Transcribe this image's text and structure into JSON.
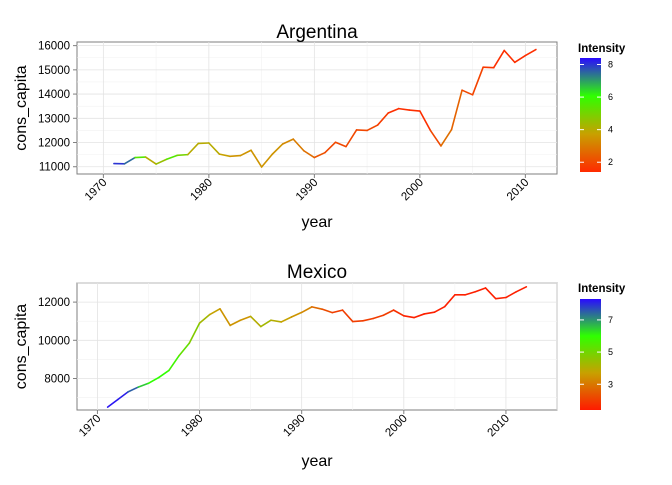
{
  "chart_data": [
    {
      "type": "line",
      "title": "Argentina",
      "xlabel": "year",
      "ylabel": "cons_capita",
      "xlim": [
        1967.5,
        2013
      ],
      "ylim": [
        10700,
        16150
      ],
      "x_ticks": [
        1970,
        1980,
        1990,
        2000,
        2010
      ],
      "y_ticks": [
        11000,
        12000,
        13000,
        14000,
        15000,
        16000
      ],
      "grid": true,
      "legend": {
        "title": "Intensity",
        "placement": "right",
        "range": [
          1.4,
          8.4
        ],
        "ticks": [
          2,
          4,
          6,
          8
        ],
        "colors": [
          "#ff2a00",
          "#c8a000",
          "#2fff00",
          "#2a0aff"
        ]
      },
      "series": [
        {
          "x": [
            1971,
            1972,
            1973,
            1974,
            1975,
            1976,
            1977,
            1978,
            1979,
            1980,
            1981,
            1982,
            1983,
            1984,
            1985,
            1986,
            1987,
            1988,
            1989,
            1990,
            1991,
            1992,
            1993,
            1994,
            1995,
            1996,
            1997,
            1998,
            1999,
            2000,
            2001,
            2002,
            2003,
            2004,
            2005,
            2006,
            2007,
            2008,
            2009,
            2010,
            2011
          ],
          "y": [
            11130,
            11120,
            11380,
            11400,
            11110,
            11310,
            11470,
            11500,
            11960,
            11980,
            11520,
            11430,
            11460,
            11680,
            10990,
            11510,
            11940,
            12140,
            11660,
            11380,
            11580,
            12010,
            11830,
            12520,
            12500,
            12720,
            13220,
            13400,
            13340,
            13300,
            12500,
            11860,
            12530,
            14160,
            13970,
            15110,
            15090,
            15800,
            15310,
            15590,
            15840
          ],
          "intensity": [
            8.0,
            8.0,
            7.0,
            4.0,
            4.0,
            5.0,
            6.0,
            4.0,
            4.0,
            4.0,
            4.0,
            3.5,
            3.5,
            3.5,
            3.5,
            3.5,
            3.5,
            3.0,
            3.0,
            2.5,
            2.0,
            2.0,
            2.0,
            2.0,
            2.0,
            2.0,
            1.5,
            1.5,
            1.5,
            1.5,
            1.5,
            2.5,
            3.0,
            2.0,
            2.0,
            1.8,
            1.5,
            1.5,
            1.5,
            1.5,
            1.5
          ]
        }
      ]
    },
    {
      "type": "line",
      "title": "Mexico",
      "xlabel": "year",
      "ylabel": "cons_capita",
      "xlim": [
        1968,
        2015
      ],
      "ylim": [
        6350,
        13000
      ],
      "x_ticks": [
        1970,
        1980,
        1990,
        2000,
        2010
      ],
      "y_ticks": [
        8000,
        10000,
        12000
      ],
      "grid": true,
      "legend": {
        "title": "Intensity",
        "placement": "right",
        "range": [
          1.4,
          8.3
        ],
        "ticks": [
          3,
          5,
          7
        ],
        "colors": [
          "#ff1a00",
          "#c8a000",
          "#2fff00",
          "#2a0aff"
        ]
      },
      "series": [
        {
          "x": [
            1971,
            1972,
            1973,
            1974,
            1975,
            1976,
            1977,
            1978,
            1979,
            1980,
            1981,
            1982,
            1983,
            1984,
            1985,
            1986,
            1987,
            1988,
            1989,
            1990,
            1991,
            1992,
            1993,
            1994,
            1995,
            1996,
            1997,
            1998,
            1999,
            2000,
            2001,
            2002,
            2003,
            2004,
            2005,
            2006,
            2007,
            2008,
            2009,
            2010,
            2011,
            2012
          ],
          "y": [
            6500,
            6900,
            7300,
            7550,
            7750,
            8050,
            8420,
            9200,
            9850,
            10900,
            11350,
            11650,
            10780,
            11050,
            11250,
            10720,
            11050,
            10960,
            11220,
            11460,
            11750,
            11630,
            11450,
            11580,
            10980,
            11020,
            11140,
            11310,
            11580,
            11280,
            11190,
            11380,
            11470,
            11760,
            12380,
            12380,
            12540,
            12740,
            12180,
            12240,
            12540,
            12800
          ],
          "intensity": [
            8.2,
            8.2,
            8.0,
            7.0,
            6.0,
            6.0,
            6.0,
            5.5,
            5.0,
            4.5,
            4.0,
            3.5,
            3.5,
            3.5,
            3.5,
            4.5,
            4.0,
            4.0,
            3.5,
            3.5,
            3.0,
            2.5,
            2.0,
            2.0,
            2.0,
            2.0,
            2.0,
            2.0,
            2.0,
            1.5,
            1.5,
            1.5,
            1.5,
            1.5,
            1.5,
            1.5,
            1.5,
            1.5,
            1.5,
            1.5,
            1.5,
            1.5
          ]
        }
      ]
    }
  ]
}
